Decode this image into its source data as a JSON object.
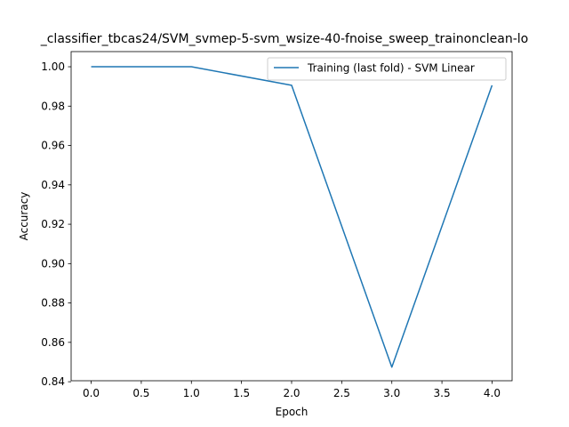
{
  "chart_data": {
    "type": "line",
    "title": "_classifier_tbcas24/SVM_svmep-5-svm_wsize-40-fnoise_sweep_trainonclean-lo",
    "xlabel": "Epoch",
    "ylabel": "Accuracy",
    "xlim": [
      -0.2,
      4.2
    ],
    "ylim": [
      0.8405,
      1.0077
    ],
    "xticks": [
      0.0,
      0.5,
      1.0,
      1.5,
      2.0,
      2.5,
      3.0,
      3.5,
      4.0
    ],
    "xtick_labels": [
      "0.0",
      "0.5",
      "1.0",
      "1.5",
      "2.0",
      "2.5",
      "3.0",
      "3.5",
      "4.0"
    ],
    "yticks": [
      0.84,
      0.86,
      0.88,
      0.9,
      0.92,
      0.94,
      0.96,
      0.98,
      1.0
    ],
    "ytick_labels": [
      "0.84",
      "0.86",
      "0.88",
      "0.90",
      "0.92",
      "0.94",
      "0.96",
      "0.98",
      "1.00"
    ],
    "grid": false,
    "legend_position": "top-right",
    "series": [
      {
        "name": "Training (last fold) - SVM Linear",
        "color": "#1f77b4",
        "x": [
          0,
          1,
          2,
          3,
          4
        ],
        "y": [
          1.0,
          1.0,
          0.9906,
          0.8474,
          0.9906
        ]
      }
    ]
  }
}
